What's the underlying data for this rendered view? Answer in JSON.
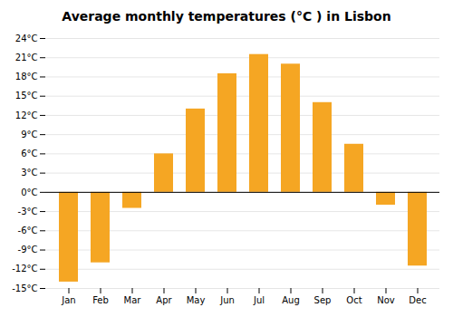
{
  "chart_data": {
    "type": "bar",
    "title": "Average monthly temperatures (°C ) in Lisbon",
    "categories": [
      "Jan",
      "Feb",
      "Mar",
      "Apr",
      "May",
      "Jun",
      "Jul",
      "Aug",
      "Sep",
      "Oct",
      "Nov",
      "Dec"
    ],
    "values": [
      -14,
      -11,
      -2.5,
      6,
      13,
      18.5,
      21.5,
      20,
      14,
      7.5,
      -2,
      -11.5
    ],
    "color": "#F5A623",
    "ylim": [
      -15,
      24
    ],
    "yticks": [
      {
        "value": -15,
        "label": "-15°C"
      },
      {
        "value": -12,
        "label": "-12°C"
      },
      {
        "value": -9,
        "label": "-9°C"
      },
      {
        "value": -6,
        "label": "-6°C"
      },
      {
        "value": -3,
        "label": "-3°C"
      },
      {
        "value": 0,
        "label": "0°C"
      },
      {
        "value": 3,
        "label": "3°C"
      },
      {
        "value": 6,
        "label": "6°C"
      },
      {
        "value": 9,
        "label": "9°C"
      },
      {
        "value": 12,
        "label": "12°C"
      },
      {
        "value": 15,
        "label": "15°C"
      },
      {
        "value": 18,
        "label": "18°C"
      },
      {
        "value": 21,
        "label": "21°C"
      },
      {
        "value": 24,
        "label": "24°C"
      }
    ],
    "grid": true
  }
}
